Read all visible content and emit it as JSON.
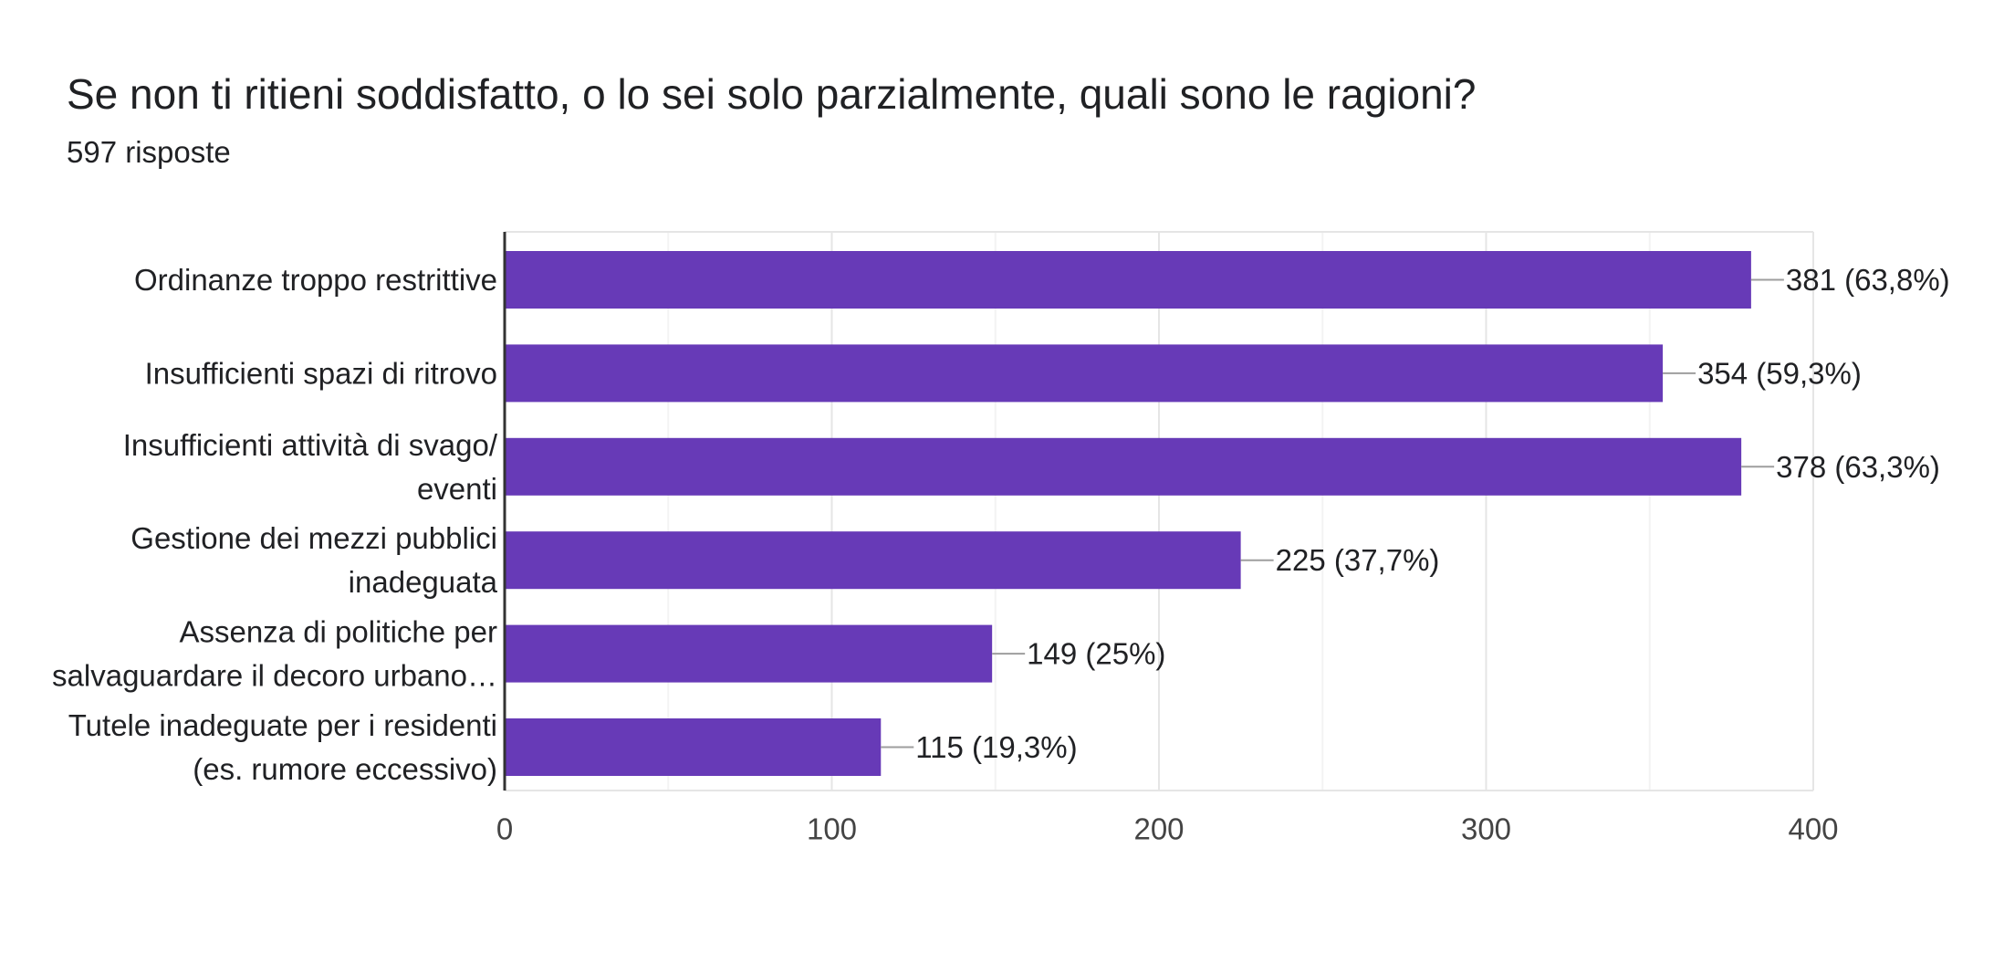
{
  "question": {
    "title": "Se non ti ritieni soddisfatto, o lo sei solo parzialmente, quali sono le ragioni?",
    "responses": "597 risposte"
  },
  "chart_data": {
    "type": "bar",
    "orientation": "horizontal",
    "bar_color": "#673ab7",
    "categories": [
      [
        "Ordinanze troppo restrittive"
      ],
      [
        "Insufficienti spazi di ritrovo"
      ],
      [
        "Insufficienti attività di svago/",
        "eventi"
      ],
      [
        "Gestione dei mezzi pubblici",
        "inadeguata"
      ],
      [
        "Assenza di politiche per",
        "salvaguardare il decoro urbano…"
      ],
      [
        "Tutele inadeguate per i residenti",
        "(es. rumore eccessivo)"
      ]
    ],
    "values": [
      381,
      354,
      378,
      225,
      149,
      115
    ],
    "data_labels": [
      "381 (63,8%)",
      "354 (59,3%)",
      "378 (63,3%)",
      "225 (37,7%)",
      "149 (25%)",
      "115 (19,3%)"
    ],
    "xlim": [
      0,
      400
    ],
    "x_ticks": [
      0,
      100,
      200,
      300,
      400
    ],
    "x_tick_labels": [
      "0",
      "100",
      "200",
      "300",
      "400"
    ],
    "minor_gridlines": true
  }
}
